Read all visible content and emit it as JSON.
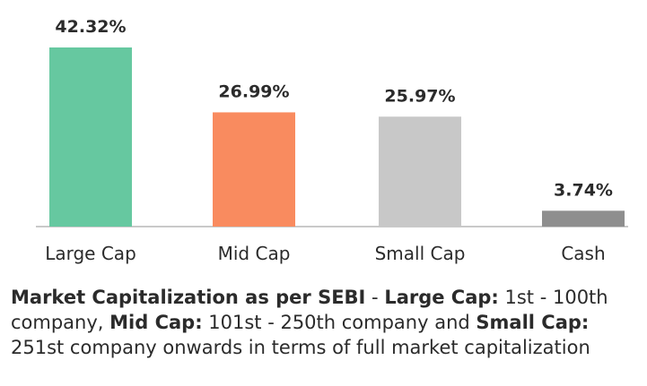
{
  "chart_data": {
    "type": "bar",
    "categories": [
      "Large Cap",
      "Mid Cap",
      "Small Cap",
      "Cash"
    ],
    "values": [
      42.32,
      26.99,
      25.97,
      3.74
    ],
    "data_labels": [
      "42.32%",
      "26.99%",
      "25.97%",
      "3.74%"
    ],
    "colors": [
      "#66c8a0",
      "#f98b5f",
      "#c8c8c8",
      "#8e8e8e"
    ],
    "ylim": [
      0,
      42.32
    ],
    "grid": false,
    "legend": "none",
    "title": "",
    "xlabel": "",
    "ylabel": ""
  },
  "footnote": {
    "part1_bold": "Market Capitalization as per SEBI",
    "part1": " - ",
    "part2_bold": "Large Cap:",
    "part2": " 1st - 100th company, ",
    "part3_bold": "Mid Cap:",
    "part3": " 101st - 250th company and ",
    "part4_bold": "Small Cap:",
    "part4": " 251st company onwards in terms of full market capitalization"
  }
}
